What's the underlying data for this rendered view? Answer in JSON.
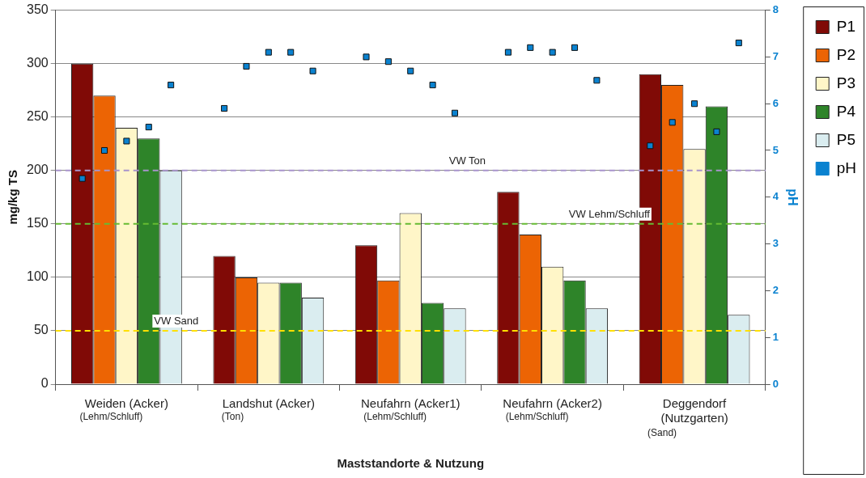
{
  "chart_data": {
    "type": "bar",
    "categories": [
      "Weiden (Acker)",
      "Landshut (Acker)",
      "Neufahrn (Acker1)",
      "Neufahrn (Acker2)",
      "Deggendorf\n(Nutzgarten)"
    ],
    "series": [
      {
        "name": "P1",
        "color": "#800a06",
        "values": [
          300,
          120,
          130,
          180,
          290
        ]
      },
      {
        "name": "P2",
        "color": "#ec6404",
        "values": [
          270,
          100,
          97,
          140,
          280
        ]
      },
      {
        "name": "P3",
        "color": "#fff6c8",
        "values": [
          240,
          95,
          160,
          110,
          220
        ]
      },
      {
        "name": "P4",
        "color": "#2e8429",
        "values": [
          230,
          95,
          76,
          97,
          260
        ]
      },
      {
        "name": "P5",
        "color": "#daedf0",
        "values": [
          200,
          81,
          71,
          71,
          65
        ]
      },
      {
        "name": "pH",
        "type": "scatter",
        "axis": "y2",
        "marker": "square",
        "color": "#0a82d0",
        "x": [
          "Weiden (Acker)",
          "Weiden (Acker)",
          "Weiden (Acker)",
          "Weiden (Acker)",
          "Weiden (Acker)",
          "Landshut (Acker)",
          "Landshut (Acker)",
          "Landshut (Acker)",
          "Landshut (Acker)",
          "Landshut (Acker)",
          "Neufahrn (Acker1)",
          "Neufahrn (Acker1)",
          "Neufahrn (Acker1)",
          "Neufahrn (Acker1)",
          "Neufahrn (Acker1)",
          "Neufahrn (Acker2)",
          "Neufahrn (Acker2)",
          "Neufahrn (Acker2)",
          "Neufahrn (Acker2)",
          "Neufahrn (Acker2)",
          "Deggendorf\n(Nutzgarten)",
          "Deggendorf\n(Nutzgarten)",
          "Deggendorf\n(Nutzgarten)",
          "Deggendorf\n(Nutzgarten)",
          "Deggendorf\n(Nutzgarten)"
        ],
        "values": [
          4.4,
          5.0,
          5.2,
          5.5,
          6.4,
          5.9,
          6.8,
          7.1,
          7.1,
          6.7,
          7.0,
          6.9,
          6.7,
          6.4,
          5.8,
          7.1,
          7.2,
          7.1,
          7.2,
          6.5,
          5.1,
          5.6,
          6.0,
          5.4,
          7.3
        ]
      }
    ],
    "xlabel": "Maststandorte & Nutzung",
    "ylabel": "mg/kg TS",
    "y2label": "pH",
    "ylim": [
      0,
      350
    ],
    "yticks": [
      0,
      50,
      100,
      150,
      200,
      250,
      300,
      350
    ],
    "y2lim": [
      0,
      8
    ],
    "y2ticks": [
      0,
      1,
      2,
      3,
      4,
      5,
      6,
      7,
      8
    ],
    "ref_lines": [
      {
        "axis": "y",
        "value": 200,
        "label": "VW Ton",
        "color": "#a894cc",
        "line_style": "dashed"
      },
      {
        "axis": "y",
        "value": 150,
        "label": "VW Lehm/Schluff",
        "color": "#66bb33",
        "line_style": "dashed"
      },
      {
        "axis": "y",
        "value": 50,
        "label": "VW Sand",
        "color": "#ffe000",
        "line_style": "dashed"
      }
    ],
    "annotations": [
      "(Lehm/Schluff)",
      "(Ton)",
      "(Lehm/Schluff)",
      "(Lehm/Schluff)",
      "(Sand)"
    ],
    "grid": "y",
    "legend": "right"
  }
}
